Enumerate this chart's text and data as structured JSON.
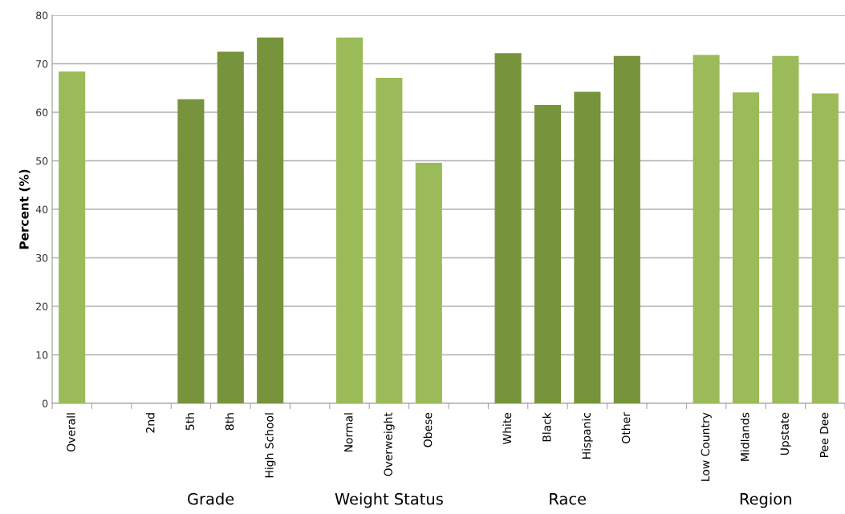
{
  "chart_data": {
    "type": "bar",
    "ylabel": "Percent (%)",
    "categories": [
      "Overall",
      null,
      "2nd",
      "5th",
      "8th",
      "High School",
      null,
      "Normal",
      "Overweight",
      "Obese",
      null,
      "White",
      "Black",
      "Hispanic",
      "Other",
      null,
      "Low Country",
      "Midlands",
      "Upstate",
      "Pee Dee"
    ],
    "values": [
      68.4,
      null,
      null,
      62.7,
      72.5,
      75.4,
      null,
      75.4,
      67.1,
      49.6,
      null,
      72.2,
      61.5,
      64.2,
      71.6,
      null,
      71.8,
      64.1,
      71.6,
      63.9
    ],
    "colors": [
      "#9bbb59",
      null,
      "#77933c",
      "#77933c",
      "#77933c",
      "#77933c",
      null,
      "#9bbb59",
      "#9bbb59",
      "#9bbb59",
      null,
      "#77933c",
      "#77933c",
      "#77933c",
      "#77933c",
      null,
      "#9bbb59",
      "#9bbb59",
      "#9bbb59",
      "#9bbb59"
    ],
    "ylim": [
      0,
      80
    ],
    "yticks": [
      0,
      10,
      20,
      30,
      40,
      50,
      60,
      70,
      80
    ],
    "grid": "y",
    "legend": false,
    "annotations": [
      "Grade",
      "Weight Status",
      "Race",
      "Region"
    ]
  }
}
